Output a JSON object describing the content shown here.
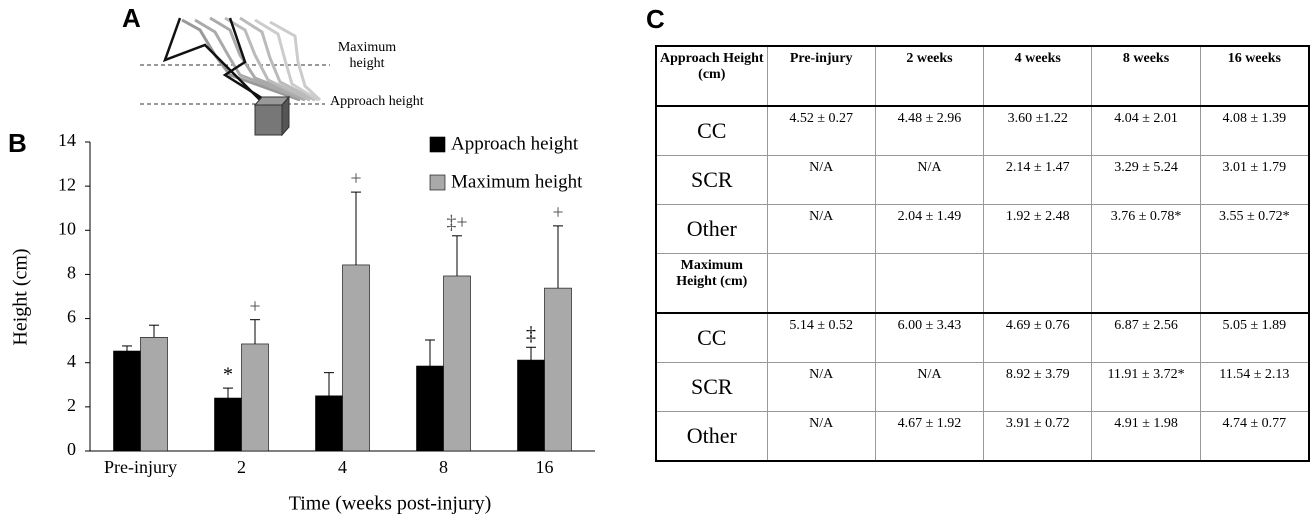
{
  "panels": {
    "a": "A",
    "b": "B",
    "c": "C"
  },
  "diagram": {
    "max_label": "Maximum height",
    "approach_label": "Approach height"
  },
  "chart_data": {
    "type": "bar",
    "ylabel": "Height (cm)",
    "xlabel": "Time (weeks post-injury)",
    "categories": [
      "Pre-injury",
      "2",
      "4",
      "8",
      "16"
    ],
    "series": [
      {
        "name": "Approach height",
        "color": "#000000",
        "values": [
          4.53,
          2.4,
          2.5,
          3.85,
          4.12
        ],
        "errors": [
          0.23,
          0.45,
          1.05,
          1.18,
          0.58
        ],
        "annotations": [
          null,
          "*",
          null,
          null,
          "‡"
        ]
      },
      {
        "name": "Maximum height",
        "color": "#a9a9a9",
        "values": [
          5.15,
          4.85,
          8.43,
          7.93,
          7.38
        ],
        "errors": [
          0.55,
          1.1,
          3.3,
          1.82,
          2.82
        ],
        "annotations": [
          null,
          "+",
          "+",
          "‡+",
          "+"
        ]
      }
    ],
    "ylim": [
      0,
      14
    ],
    "yticks": [
      0,
      2,
      4,
      6,
      8,
      10,
      12,
      14
    ]
  },
  "table": {
    "sections": [
      {
        "header": [
          "Approach Height (cm)",
          "Pre-injury",
          "2 weeks",
          "4 weeks",
          "8 weeks",
          "16 weeks"
        ],
        "rows": [
          [
            "CC",
            "4.52 ± 0.27",
            "4.48 ± 2.96",
            "3.60 ±1.22",
            "4.04 ± 2.01",
            "4.08 ± 1.39"
          ],
          [
            "SCR",
            "N/A",
            "N/A",
            "2.14 ± 1.47",
            "3.29 ± 5.24",
            "3.01 ± 1.79"
          ],
          [
            "Other",
            "N/A",
            "2.04 ± 1.49",
            "1.92 ± 2.48",
            "3.76 ± 0.78*",
            "3.55 ± 0.72*"
          ]
        ]
      },
      {
        "header": [
          "Maximum Height (cm)"
        ],
        "rows": [
          [
            "CC",
            "5.14 ± 0.52",
            "6.00 ± 3.43",
            "4.69 ± 0.76",
            "6.87 ± 2.56",
            "5.05 ± 1.89"
          ],
          [
            "SCR",
            "N/A",
            "N/A",
            "8.92 ± 3.79",
            "11.91 ± 3.72*",
            "11.54 ± 2.13"
          ],
          [
            "Other",
            "N/A",
            "4.67 ± 1.92",
            "3.91 ± 0.72",
            "4.91 ± 1.98",
            "4.74 ± 0.77"
          ]
        ]
      }
    ]
  }
}
